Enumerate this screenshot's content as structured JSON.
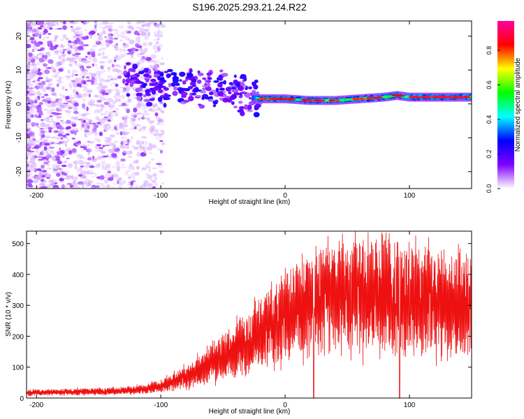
{
  "page_title": "S196.2025.293.21.24.R22",
  "chart_data": [
    {
      "type": "heatmap",
      "name": "spectrogram",
      "xlabel": "Height of straight line (km)",
      "ylabel": "Frequency (Hz)",
      "xlim": [
        -208,
        150
      ],
      "ylim": [
        -25,
        24.5
      ],
      "xticks": [
        -200,
        -100,
        0,
        100
      ],
      "yticks": [
        -20,
        -10,
        0,
        10,
        20
      ],
      "ridge": {
        "x": [
          -130,
          -110,
          -90,
          -75,
          -60,
          -50,
          -40,
          -30,
          -20,
          -10,
          0,
          20,
          40,
          60,
          80,
          90,
          100,
          120,
          150
        ],
        "y": [
          8.5,
          6,
          5,
          4.8,
          4.5,
          4,
          3.5,
          2.5,
          1.5,
          1.5,
          1.5,
          1,
          1,
          1.5,
          2,
          2.5,
          2,
          2,
          2
        ]
      },
      "colorbar": {
        "label": "Normalized spectral amplitude",
        "range": [
          0,
          0.97
        ],
        "ticks": [
          0.0,
          0.2,
          0.4,
          0.6,
          0.8
        ],
        "tick_labels": [
          "0.0",
          "0.2",
          "0.4",
          "0.6",
          "0.8"
        ],
        "colors": [
          "#ffffff",
          "#8000ff",
          "#0000ff",
          "#00ffff",
          "#00ff00",
          "#ffff00",
          "#ff0000",
          "#ff00a0"
        ]
      }
    },
    {
      "type": "line",
      "name": "snr",
      "xlabel": "Height of straight line (km)",
      "ylabel": "SNR (10 * v/v)",
      "xlim": [
        -208,
        150
      ],
      "ylim": [
        0,
        540
      ],
      "xticks": [
        -200,
        -100,
        0,
        100
      ],
      "yticks": [
        0,
        100,
        200,
        300,
        400,
        500
      ],
      "color": "#ee1111",
      "envelope": {
        "x": [
          -208,
          -150,
          -120,
          -100,
          -80,
          -60,
          -40,
          -20,
          0,
          20,
          40,
          60,
          80,
          100,
          120,
          140,
          150
        ],
        "y": [
          20,
          25,
          30,
          45,
          80,
          130,
          190,
          240,
          320,
          360,
          390,
          400,
          400,
          390,
          370,
          360,
          370
        ]
      },
      "dropouts_x": [
        23,
        92
      ]
    }
  ]
}
